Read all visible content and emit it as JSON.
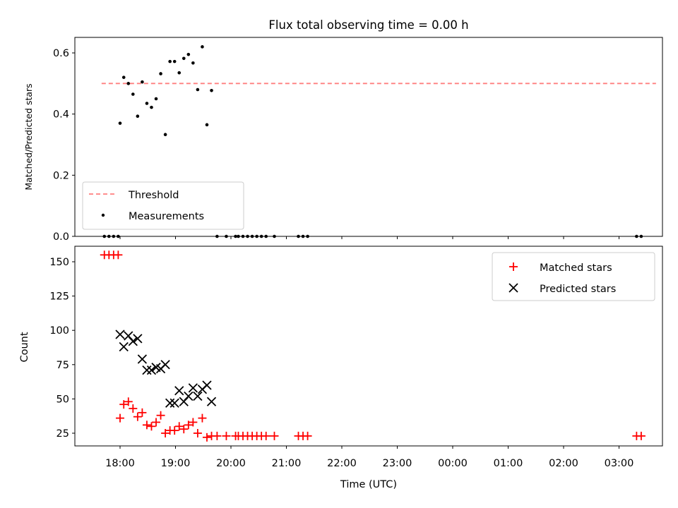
{
  "chart_data": [
    {
      "type": "scatter",
      "title": "Flux total observing time = 0.00 h",
      "ylabel": "Matched/Predicted stars",
      "xlabel": "",
      "xlim": [
        "17:15",
        "03:55"
      ],
      "ylim": [
        0,
        0.65
      ],
      "yticks": [
        0.0,
        0.2,
        0.4,
        0.6
      ],
      "ytick_labels": [
        "0.0",
        "0.2",
        "0.4",
        "0.6"
      ],
      "grid": false,
      "legend_position": "lower-left",
      "series": [
        {
          "name": "Threshold",
          "kind": "line",
          "style": "dashed",
          "color": "#ff7f7f",
          "x": [
            "17:40",
            "03:40"
          ],
          "y": [
            0.5,
            0.5
          ]
        },
        {
          "name": "Measurements",
          "kind": "scatter",
          "marker": "dot",
          "color": "#000000",
          "points": [
            [
              "17:43",
              0.0
            ],
            [
              "17:48",
              0.0
            ],
            [
              "17:53",
              0.0
            ],
            [
              "17:58",
              0.0
            ],
            [
              "18:00",
              0.37
            ],
            [
              "18:04",
              0.52
            ],
            [
              "18:09",
              0.5
            ],
            [
              "18:14",
              0.465
            ],
            [
              "18:19",
              0.393
            ],
            [
              "18:24",
              0.505
            ],
            [
              "18:29",
              0.435
            ],
            [
              "18:34",
              0.422
            ],
            [
              "18:39",
              0.45
            ],
            [
              "18:44",
              0.532
            ],
            [
              "18:49",
              0.333
            ],
            [
              "18:54",
              0.572
            ],
            [
              "18:59",
              0.572
            ],
            [
              "19:04",
              0.535
            ],
            [
              "19:09",
              0.582
            ],
            [
              "19:14",
              0.595
            ],
            [
              "19:19",
              0.567
            ],
            [
              "19:24",
              0.48
            ],
            [
              "19:29",
              0.62
            ],
            [
              "19:34",
              0.365
            ],
            [
              "19:39",
              0.477
            ],
            [
              "19:45",
              0.0
            ],
            [
              "19:55",
              0.0
            ],
            [
              "20:05",
              0.0
            ],
            [
              "20:08",
              0.0
            ],
            [
              "20:13",
              0.0
            ],
            [
              "20:18",
              0.0
            ],
            [
              "20:23",
              0.0
            ],
            [
              "20:28",
              0.0
            ],
            [
              "20:33",
              0.0
            ],
            [
              "20:38",
              0.0
            ],
            [
              "20:47",
              0.0
            ],
            [
              "21:13",
              0.0
            ],
            [
              "21:18",
              0.0
            ],
            [
              "21:23",
              0.0
            ],
            [
              "03:19",
              0.0
            ],
            [
              "03:24",
              0.0
            ]
          ]
        }
      ]
    },
    {
      "type": "scatter",
      "title": "",
      "xlabel": "Time (UTC)",
      "ylabel": "Count",
      "xlim": [
        "17:15",
        "03:55"
      ],
      "ylim": [
        15,
        162
      ],
      "xtick_labels": [
        "18:00",
        "19:00",
        "20:00",
        "21:00",
        "22:00",
        "23:00",
        "00:00",
        "01:00",
        "02:00",
        "03:00"
      ],
      "yticks": [
        25,
        50,
        75,
        100,
        125,
        150
      ],
      "ytick_labels": [
        "25",
        "50",
        "75",
        "100",
        "125",
        "150"
      ],
      "grid": false,
      "legend_position": "upper-right",
      "series": [
        {
          "name": "Matched stars",
          "marker": "+",
          "color": "#ff0000",
          "points": [
            [
              "17:43",
              155
            ],
            [
              "17:48",
              155
            ],
            [
              "17:53",
              155
            ],
            [
              "17:58",
              155
            ],
            [
              "18:00",
              36
            ],
            [
              "18:04",
              46
            ],
            [
              "18:09",
              48
            ],
            [
              "18:14",
              43
            ],
            [
              "18:19",
              37
            ],
            [
              "18:24",
              40
            ],
            [
              "18:29",
              31
            ],
            [
              "18:34",
              30
            ],
            [
              "18:39",
              33
            ],
            [
              "18:44",
              38
            ],
            [
              "18:49",
              25
            ],
            [
              "18:54",
              27
            ],
            [
              "18:59",
              27
            ],
            [
              "19:04",
              30
            ],
            [
              "19:09",
              28
            ],
            [
              "19:14",
              31
            ],
            [
              "19:19",
              33
            ],
            [
              "19:24",
              25
            ],
            [
              "19:29",
              36
            ],
            [
              "19:34",
              22
            ],
            [
              "19:39",
              23
            ],
            [
              "19:45",
              23
            ],
            [
              "19:55",
              23
            ],
            [
              "20:05",
              23
            ],
            [
              "20:08",
              23
            ],
            [
              "20:13",
              23
            ],
            [
              "20:18",
              23
            ],
            [
              "20:23",
              23
            ],
            [
              "20:28",
              23
            ],
            [
              "20:33",
              23
            ],
            [
              "20:38",
              23
            ],
            [
              "20:47",
              23
            ],
            [
              "21:13",
              23
            ],
            [
              "21:18",
              23
            ],
            [
              "21:23",
              23
            ],
            [
              "03:19",
              23
            ],
            [
              "03:24",
              23
            ]
          ]
        },
        {
          "name": "Predicted stars",
          "marker": "x",
          "color": "#000000",
          "points": [
            [
              "18:00",
              97
            ],
            [
              "18:04",
              88
            ],
            [
              "18:09",
              96
            ],
            [
              "18:14",
              92
            ],
            [
              "18:19",
              94
            ],
            [
              "18:24",
              79
            ],
            [
              "18:29",
              71
            ],
            [
              "18:34",
              71
            ],
            [
              "18:39",
              73
            ],
            [
              "18:44",
              72
            ],
            [
              "18:49",
              75
            ],
            [
              "18:54",
              47
            ],
            [
              "18:59",
              47
            ],
            [
              "19:04",
              56
            ],
            [
              "19:09",
              48
            ],
            [
              "19:14",
              52
            ],
            [
              "19:19",
              58
            ],
            [
              "19:24",
              52
            ],
            [
              "19:29",
              57
            ],
            [
              "19:34",
              60
            ],
            [
              "19:39",
              48
            ]
          ]
        }
      ]
    }
  ]
}
